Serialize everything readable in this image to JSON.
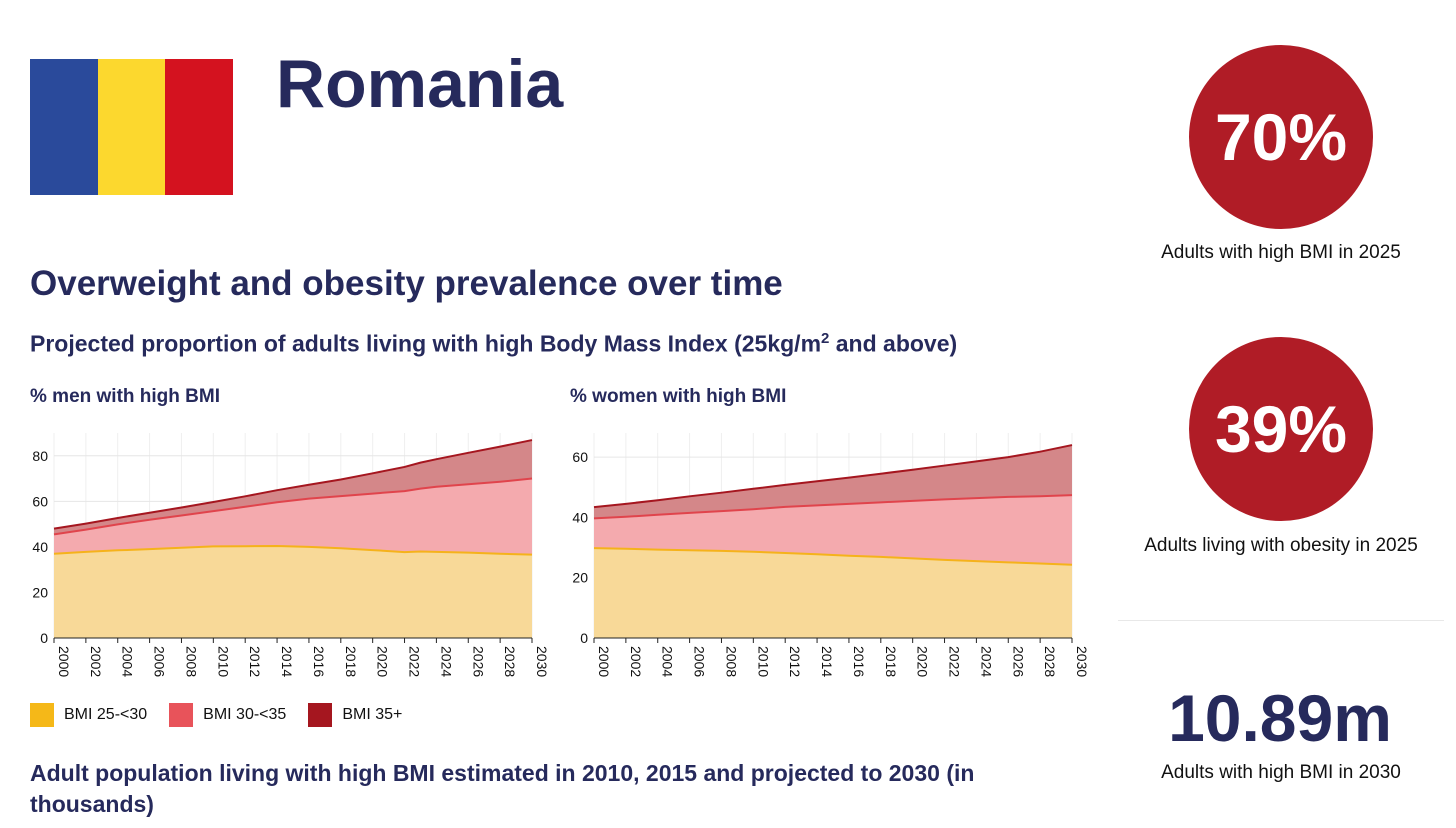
{
  "header": {
    "country": "Romania",
    "flag_colors": [
      "#2a4a9b",
      "#fcd82e",
      "#d4121f"
    ]
  },
  "section_title": "Overweight and obesity prevalence over time",
  "subtitle": {
    "text": "Projected proportion of adults living with high Body Mass Index (25kg/m",
    "sup": "2",
    "tail": " and above)"
  },
  "stats": [
    {
      "value": "70%",
      "caption": "Adults with high BMI in 2025"
    },
    {
      "value": "39%",
      "caption": "Adults living with obesity in 2025"
    }
  ],
  "big_stat": {
    "value": "10.89m",
    "caption": "Adults with high BMI in 2030"
  },
  "bottom_title": "Adult population living with high BMI estimated in 2010, 2015 and projected to 2030 (in thousands)",
  "legend": [
    {
      "label": "BMI 25-<30",
      "color": "#f5b818"
    },
    {
      "label": "BMI 30-<35",
      "color": "#e8535a"
    },
    {
      "label": "BMI 35+",
      "color": "#a5161f"
    }
  ],
  "chart_data": [
    {
      "type": "area",
      "stacked": true,
      "title": "% men with high BMI",
      "x": [
        2000,
        2002,
        2004,
        2006,
        2008,
        2010,
        2012,
        2014,
        2016,
        2018,
        2020,
        2022,
        2023,
        2024,
        2026,
        2028,
        2030
      ],
      "x_ticks": [
        "2000",
        "2002",
        "2004",
        "2006",
        "2008",
        "2010",
        "2012",
        "2014",
        "2016",
        "2018",
        "2020",
        "2022",
        "2024",
        "2026",
        "2028",
        "2030"
      ],
      "y_ticks": [
        "0",
        "20",
        "40",
        "60",
        "80"
      ],
      "ylim": [
        0,
        90
      ],
      "series": [
        {
          "name": "BMI 25-<30",
          "values": [
            37,
            37.8,
            38.5,
            39,
            39.6,
            40.2,
            40.3,
            40.4,
            40,
            39.4,
            38.6,
            37.7,
            38,
            37.8,
            37.5,
            37,
            36.6
          ]
        },
        {
          "name": "BMI 30-<35",
          "values": [
            8.5,
            9.8,
            11.4,
            12.9,
            14.2,
            15.5,
            17.3,
            19.2,
            21.2,
            22.9,
            24.8,
            26.8,
            27.6,
            28.6,
            30,
            31.6,
            33.4
          ]
        },
        {
          "name": "BMI 35+",
          "values": [
            2.5,
            2.6,
            2.8,
            3.1,
            3.5,
            4,
            4.6,
            5.3,
            6.1,
            7.3,
            8.9,
            10.6,
            11.4,
            12.1,
            13.8,
            15.4,
            16.9
          ]
        }
      ]
    },
    {
      "type": "area",
      "stacked": true,
      "title": "% women with high BMI",
      "x": [
        2000,
        2002,
        2004,
        2006,
        2008,
        2010,
        2012,
        2014,
        2016,
        2018,
        2020,
        2022,
        2024,
        2026,
        2028,
        2030
      ],
      "x_ticks": [
        "2000",
        "2002",
        "2004",
        "2006",
        "2008",
        "2010",
        "2012",
        "2014",
        "2016",
        "2018",
        "2020",
        "2022",
        "2024",
        "2026",
        "2028",
        "2030"
      ],
      "y_ticks": [
        "0",
        "20",
        "40",
        "60"
      ],
      "ylim": [
        0,
        68
      ],
      "series": [
        {
          "name": "BMI 25-<30",
          "values": [
            29.8,
            29.6,
            29.3,
            29.1,
            28.9,
            28.6,
            28.2,
            27.8,
            27.3,
            26.9,
            26.4,
            25.9,
            25.5,
            25.1,
            24.7,
            24.3
          ]
        },
        {
          "name": "BMI 30-<35",
          "values": [
            9.9,
            10.6,
            11.6,
            12.4,
            13.2,
            14.1,
            15.3,
            16.2,
            17.2,
            18.1,
            19.1,
            20.1,
            20.9,
            21.7,
            22.3,
            23.1
          ]
        },
        {
          "name": "BMI 35+",
          "values": [
            3.7,
            4.3,
            4.8,
            5.5,
            6.1,
            6.8,
            7.3,
            8,
            8.7,
            9.5,
            10.3,
            11.2,
            12.2,
            13.2,
            14.8,
            16.6
          ]
        }
      ]
    }
  ]
}
